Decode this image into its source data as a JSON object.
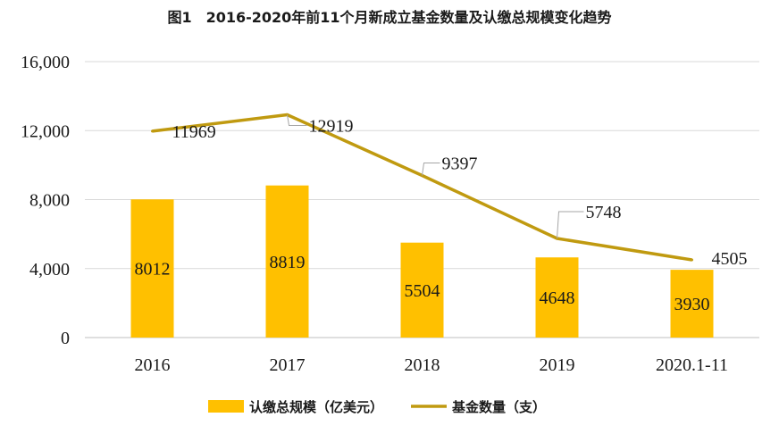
{
  "chart_data": {
    "type": "bar",
    "title": "图1　2016-2020年前11个月新成立基金数量及认缴总规模变化趋势",
    "categories": [
      "2016",
      "2017",
      "2018",
      "2019",
      "2020.1-11"
    ],
    "series": [
      {
        "name": "认缴总规模（亿美元）",
        "type": "bar",
        "color": "#FFC000",
        "values": [
          8012,
          8819,
          5504,
          4648,
          3930
        ],
        "labels": [
          "8012",
          "8819",
          "5504",
          "4648",
          "3930"
        ]
      },
      {
        "name": "基金数量（支）",
        "type": "line",
        "color": "#C09A10",
        "values": [
          11969,
          12919,
          9397,
          5748,
          4505
        ],
        "labels": [
          "11969",
          "12919",
          "9397",
          "5748",
          "4505"
        ]
      }
    ],
    "ylim": [
      0,
      16000
    ],
    "yticks": [
      0,
      4000,
      8000,
      12000,
      16000
    ],
    "ytick_labels": [
      "0",
      "4,000",
      "8,000",
      "12,000",
      "16,000"
    ],
    "grid": true,
    "legend_position": "bottom"
  }
}
